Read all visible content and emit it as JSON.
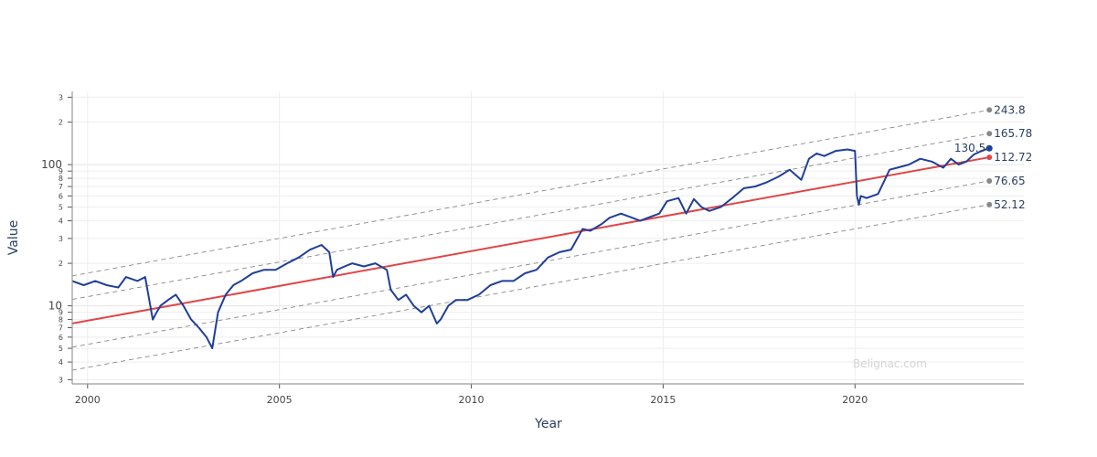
{
  "chart_data": {
    "type": "line",
    "title": "",
    "xlabel": "Year",
    "ylabel": "Value",
    "y_scale": "log",
    "grid": true,
    "xlim": [
      1999.6,
      2024.4
    ],
    "ylim": [
      2.8,
      330
    ],
    "x_ticks": [
      2000,
      2005,
      2010,
      2015,
      2020
    ],
    "x_tick_labels": [
      "2000",
      "2005",
      "2010",
      "2015",
      "2020"
    ],
    "y_major_ticks": [
      10,
      100
    ],
    "y_major_labels": [
      "10",
      "100"
    ],
    "y_minor_ticks": [
      3,
      4,
      5,
      6,
      7,
      8,
      9,
      20,
      30,
      40,
      50,
      60,
      70,
      80,
      90,
      200,
      300
    ],
    "y_minor_labels": [
      "3",
      "4",
      "5",
      "6",
      "7",
      "8",
      "9",
      "2",
      "3",
      "4",
      "5",
      "6",
      "7",
      "8",
      "9",
      "2",
      "3"
    ],
    "watermark": "Belignac.com",
    "price_series": {
      "color": "#1f3f99",
      "x": [
        1999.6,
        1999.9,
        2000.2,
        2000.5,
        2000.8,
        2001.0,
        2001.3,
        2001.5,
        2001.7,
        2001.8,
        2001.9,
        2002.1,
        2002.3,
        2002.5,
        2002.7,
        2002.9,
        2003.1,
        2003.25,
        2003.4,
        2003.6,
        2003.8,
        2004.0,
        2004.3,
        2004.6,
        2004.9,
        2005.2,
        2005.5,
        2005.8,
        2006.1,
        2006.3,
        2006.4,
        2006.5,
        2006.7,
        2006.9,
        2007.2,
        2007.5,
        2007.8,
        2007.9,
        2008.1,
        2008.3,
        2008.5,
        2008.7,
        2008.9,
        2009.1,
        2009.2,
        2009.4,
        2009.6,
        2009.9,
        2010.2,
        2010.5,
        2010.8,
        2011.1,
        2011.4,
        2011.7,
        2012.0,
        2012.3,
        2012.6,
        2012.9,
        2013.1,
        2013.4,
        2013.6,
        2013.9,
        2014.2,
        2014.4,
        2014.6,
        2014.9,
        2015.1,
        2015.4,
        2015.6,
        2015.8,
        2016.0,
        2016.2,
        2016.5,
        2016.8,
        2017.1,
        2017.4,
        2017.7,
        2018.0,
        2018.3,
        2018.6,
        2018.8,
        2019.0,
        2019.2,
        2019.5,
        2019.8,
        2020.0,
        2020.05,
        2020.1,
        2020.15,
        2020.3,
        2020.6,
        2020.9,
        2021.1,
        2021.4,
        2021.7,
        2022.0,
        2022.3,
        2022.5,
        2022.7,
        2022.9,
        2023.1,
        2023.3,
        2023.5
      ],
      "y": [
        15,
        14,
        15,
        14,
        13.5,
        16,
        15,
        16,
        8,
        9,
        10,
        11,
        12,
        10,
        8,
        7,
        6,
        5,
        9,
        12,
        14,
        15,
        17,
        18,
        18,
        20,
        22,
        25,
        27,
        24,
        16,
        18,
        19,
        20,
        19,
        20,
        18,
        13,
        11,
        12,
        10,
        9,
        10,
        7.5,
        8,
        10,
        11,
        11,
        12,
        14,
        15,
        15,
        17,
        18,
        22,
        24,
        25,
        35,
        34,
        38,
        42,
        45,
        42,
        40,
        42,
        45,
        55,
        58,
        45,
        57,
        50,
        47,
        50,
        58,
        68,
        70,
        75,
        82,
        92,
        78,
        110,
        120,
        115,
        125,
        128,
        125,
        60,
        52,
        60,
        58,
        62,
        92,
        95,
        100,
        110,
        105,
        95,
        110,
        100,
        105,
        118,
        125,
        130.5
      ]
    },
    "regression": {
      "color": "#e04646",
      "band_color": "#888888",
      "x_start": 1999.6,
      "x_end": 2023.5,
      "center_start": 7.5,
      "center_end": 112.72,
      "band_ends": [
        243.8,
        165.78,
        112.72,
        76.65,
        52.12
      ],
      "band_starts": [
        16.3,
        11.1,
        7.5,
        5.1,
        3.5
      ]
    },
    "end_labels": [
      {
        "text": "243.8",
        "value": 243.8,
        "color": "#888888"
      },
      {
        "text": "165.78",
        "value": 165.78,
        "color": "#888888"
      },
      {
        "text": "112.72",
        "value": 112.72,
        "color": "#e04646"
      },
      {
        "text": "76.65",
        "value": 76.65,
        "color": "#888888"
      },
      {
        "text": "52.12",
        "value": 52.12,
        "color": "#888888"
      }
    ],
    "last_price": {
      "text": "130.5",
      "value": 130.5
    }
  }
}
